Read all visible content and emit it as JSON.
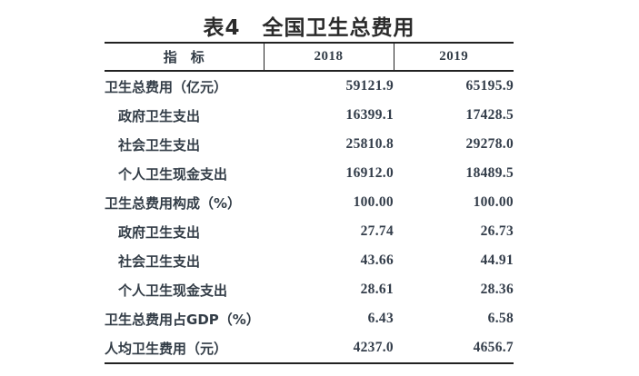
{
  "title": "表4　全国卫生总费用",
  "colors": {
    "background": "#ffffff",
    "rule": "#222222",
    "title_text": "#2b2b2b",
    "body_text": "#333d47",
    "number_text": "#333d4a"
  },
  "table": {
    "headers": {
      "indicator": "指　标",
      "col2018": "2018",
      "col2019": "2019"
    },
    "rows": [
      {
        "label": "卫生总费用（亿元）",
        "indent": false,
        "v2018": "59121.9",
        "v2019": "65195.9"
      },
      {
        "label": "政府卫生支出",
        "indent": true,
        "v2018": "16399.1",
        "v2019": "17428.5"
      },
      {
        "label": "社会卫生支出",
        "indent": true,
        "v2018": "25810.8",
        "v2019": "29278.0"
      },
      {
        "label": "个人卫生现金支出",
        "indent": true,
        "v2018": "16912.0",
        "v2019": "18489.5"
      },
      {
        "label": "卫生总费用构成（%）",
        "indent": false,
        "v2018": "100.00",
        "v2019": "100.00"
      },
      {
        "label": "政府卫生支出",
        "indent": true,
        "v2018": "27.74",
        "v2019": "26.73"
      },
      {
        "label": "社会卫生支出",
        "indent": true,
        "v2018": "43.66",
        "v2019": "44.91"
      },
      {
        "label": "个人卫生现金支出",
        "indent": true,
        "v2018": "28.61",
        "v2019": "28.36"
      },
      {
        "label": "卫生总费用占GDP（%）",
        "indent": false,
        "v2018": "6.43",
        "v2019": "6.58"
      },
      {
        "label": "人均卫生费用（元）",
        "indent": false,
        "v2018": "4237.0",
        "v2019": "4656.7"
      }
    ]
  }
}
